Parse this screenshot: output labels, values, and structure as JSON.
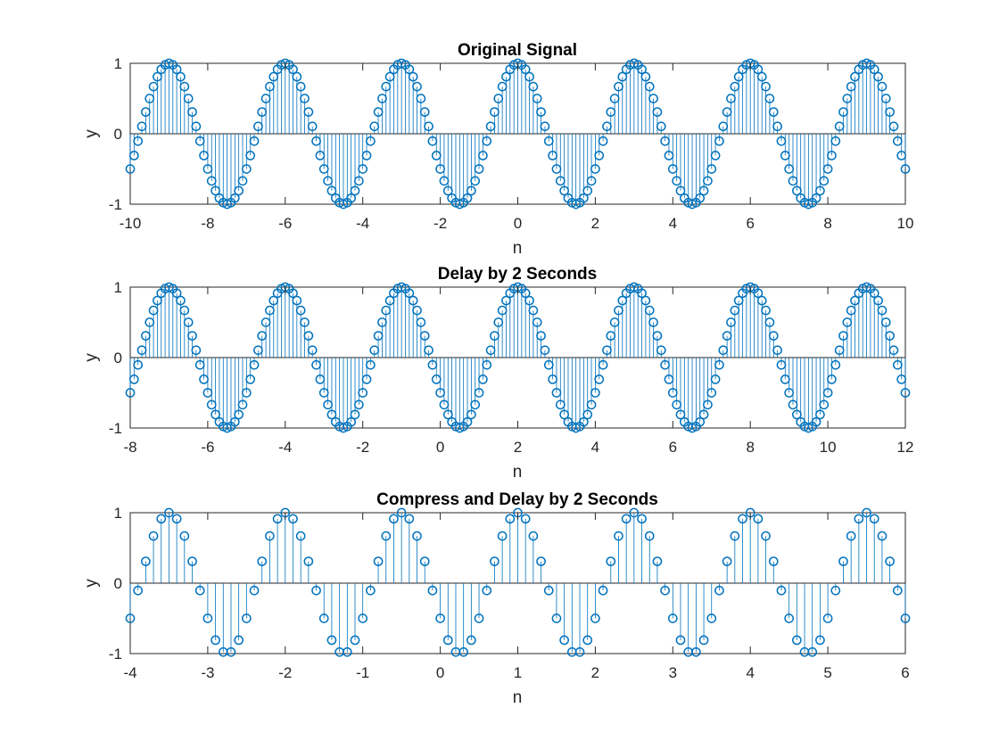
{
  "figure": {
    "background": "#ffffff",
    "stem_color": "#0072BD"
  },
  "chart_data": [
    {
      "type": "stem",
      "title": "Original Signal",
      "xlabel": "n",
      "ylabel": "y",
      "xlim": [
        -10,
        10
      ],
      "ylim": [
        -1,
        1
      ],
      "xticks": [
        -10,
        -8,
        -6,
        -4,
        -2,
        0,
        2,
        4,
        6,
        8,
        10
      ],
      "yticks": [
        -1,
        0,
        1
      ],
      "series": [
        {
          "x_start": -10,
          "x_end": 10,
          "x_step": 0.1,
          "function": "cos(2*pi*n/3)"
        }
      ]
    },
    {
      "type": "stem",
      "title": "Delay by 2 Seconds",
      "xlabel": "n",
      "ylabel": "y",
      "xlim": [
        -8,
        12
      ],
      "ylim": [
        -1,
        1
      ],
      "xticks": [
        -8,
        -6,
        -4,
        -2,
        0,
        2,
        4,
        6,
        8,
        10,
        12
      ],
      "yticks": [
        -1,
        0,
        1
      ],
      "series": [
        {
          "x_start": -8,
          "x_end": 12,
          "x_step": 0.1,
          "function": "cos(2*pi*(n-2)/3)"
        }
      ]
    },
    {
      "type": "stem",
      "title": "Compress and Delay by 2 Seconds",
      "xlabel": "n",
      "ylabel": "y",
      "xlim": [
        -4,
        6
      ],
      "ylim": [
        -1,
        1
      ],
      "xticks": [
        -4,
        -3,
        -2,
        -1,
        0,
        1,
        2,
        3,
        4,
        5,
        6
      ],
      "yticks": [
        -1,
        0,
        1
      ],
      "series": [
        {
          "x_start": -4,
          "x_end": 6,
          "x_step": 0.1,
          "function": "cos(2*pi*(2n-2)/3)"
        }
      ]
    }
  ]
}
